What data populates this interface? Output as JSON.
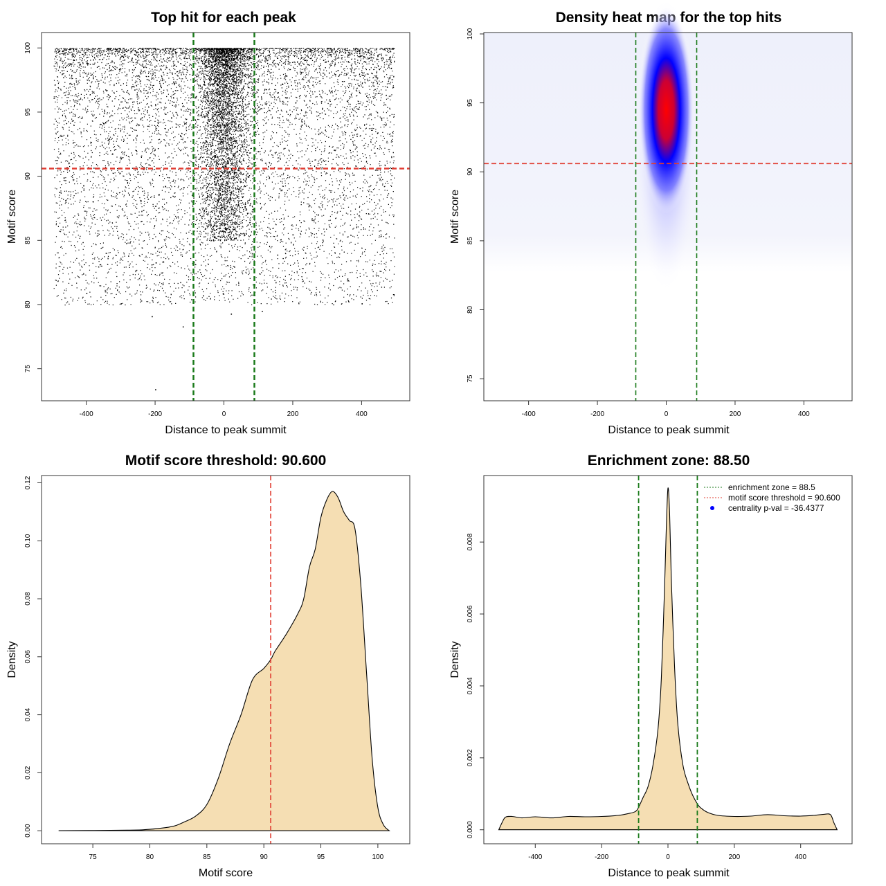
{
  "colors": {
    "threshold_line": "#e03c31",
    "zone_line": "#1a7a1a",
    "density_fill": "#f5deb3",
    "heat_low": "#ffffff",
    "heat_mid": "#0000ff",
    "heat_high": "#ff0000",
    "legend_point": "#0000ff"
  },
  "chart_data": [
    {
      "type": "scatter",
      "title": "Top hit for each peak",
      "xlabel": "Distance to peak summit",
      "ylabel": "Motif score",
      "xlim": [
        -530,
        540
      ],
      "ylim": [
        72.5,
        101.2
      ],
      "xticks": [
        -400,
        -200,
        0,
        200,
        400
      ],
      "yticks": [
        75,
        80,
        85,
        90,
        95,
        100
      ],
      "xtick_labels": [
        "-400",
        "-200",
        "0",
        "200",
        "400"
      ],
      "ytick_labels": [
        "75",
        "80",
        "85",
        "90",
        "95",
        "100"
      ],
      "grid": false,
      "point_count_estimate": 12000,
      "point_distribution": {
        "background_x_range": [
          -495,
          495
        ],
        "background_y_range": [
          80,
          100
        ],
        "central_cluster_x_center": 0,
        "central_cluster_x_spread": 35,
        "central_cluster_y_range": [
          85,
          100
        ]
      },
      "reference_lines": {
        "horizontal": [
          {
            "y": 90.6,
            "style": "dashed",
            "color": "red"
          }
        ],
        "vertical": [
          {
            "x": -88.5,
            "style": "dashed",
            "color": "green"
          },
          {
            "x": 88.5,
            "style": "dashed",
            "color": "green"
          }
        ]
      },
      "sample_outliers": [
        {
          "x": -200,
          "y": 73.4
        },
        {
          "x": -120,
          "y": 78.3
        },
        {
          "x": -210,
          "y": 79.1
        },
        {
          "x": 400,
          "y": 80.1
        },
        {
          "x": -300,
          "y": 80.1
        },
        {
          "x": -400,
          "y": 80.9
        },
        {
          "x": 20,
          "y": 79.3
        },
        {
          "x": 110,
          "y": 79.5
        }
      ]
    },
    {
      "type": "heatmap",
      "title": "Density heat map for the top hits",
      "xlabel": "Distance to peak summit",
      "ylabel": "Motif score",
      "xlim": [
        -530,
        540
      ],
      "ylim": [
        73.4,
        100.1
      ],
      "xticks": [
        -400,
        -200,
        0,
        200,
        400
      ],
      "yticks": [
        75,
        80,
        85,
        90,
        95,
        100
      ],
      "xtick_labels": [
        "-400",
        "-200",
        "0",
        "200",
        "400"
      ],
      "ytick_labels": [
        "75",
        "80",
        "85",
        "90",
        "95",
        "100"
      ],
      "color_scale": [
        "white",
        "blue",
        "red"
      ],
      "hotspot": {
        "x": 0,
        "y": 96.5
      },
      "reference_lines": {
        "horizontal": [
          {
            "y": 90.6,
            "style": "dashed",
            "color": "red"
          }
        ],
        "vertical": [
          {
            "x": -88.5,
            "style": "dashed",
            "color": "green"
          },
          {
            "x": 88.5,
            "style": "dashed",
            "color": "green"
          }
        ]
      }
    },
    {
      "type": "area",
      "title": "Motif score threshold: 90.600",
      "xlabel": "Motif score",
      "ylabel": "Density",
      "xlim": [
        70.5,
        102.8
      ],
      "ylim": [
        -0.0045,
        0.1225
      ],
      "xticks": [
        75,
        80,
        85,
        90,
        95,
        100
      ],
      "yticks": [
        0.0,
        0.02,
        0.04,
        0.06,
        0.08,
        0.1,
        0.12
      ],
      "xtick_labels": [
        "75",
        "80",
        "85",
        "90",
        "95",
        "100"
      ],
      "ytick_labels": [
        "0.00",
        "0.02",
        "0.04",
        "0.06",
        "0.08",
        "0.10",
        "0.12"
      ],
      "x": [
        72,
        78,
        80,
        82,
        83,
        84,
        85,
        86,
        87,
        88,
        89,
        90,
        90.6,
        91,
        92,
        93,
        93.5,
        94,
        94.5,
        95,
        95.5,
        96,
        96.5,
        97,
        97.5,
        98,
        98.5,
        99,
        99.5,
        100,
        100.5,
        101
      ],
      "y": [
        0.0,
        0.0002,
        0.0005,
        0.0015,
        0.003,
        0.005,
        0.009,
        0.018,
        0.03,
        0.04,
        0.052,
        0.056,
        0.059,
        0.062,
        0.068,
        0.075,
        0.08,
        0.091,
        0.097,
        0.108,
        0.114,
        0.117,
        0.115,
        0.11,
        0.107,
        0.104,
        0.085,
        0.055,
        0.025,
        0.008,
        0.002,
        0.0
      ],
      "reference_lines": {
        "vertical": [
          {
            "x": 90.6,
            "style": "dashed",
            "color": "red"
          }
        ]
      }
    },
    {
      "type": "area",
      "title": "Enrichment zone: 88.50",
      "xlabel": "Distance to peak summit",
      "ylabel": "Density",
      "xlim": [
        -555,
        555
      ],
      "ylim": [
        -0.00039,
        0.00985
      ],
      "xticks": [
        -400,
        -200,
        0,
        200,
        400
      ],
      "yticks": [
        0.0,
        0.002,
        0.004,
        0.006,
        0.008
      ],
      "xtick_labels": [
        "-400",
        "-200",
        "0",
        "200",
        "400"
      ],
      "ytick_labels": [
        "0.000",
        "0.002",
        "0.004",
        "0.006",
        "0.008"
      ],
      "x": [
        -510,
        -500,
        -490,
        -470,
        -440,
        -400,
        -350,
        -300,
        -250,
        -200,
        -150,
        -120,
        -100,
        -90,
        -75,
        -60,
        -45,
        -30,
        -20,
        -10,
        -5,
        0,
        5,
        10,
        20,
        30,
        45,
        60,
        75,
        90,
        100,
        120,
        150,
        200,
        250,
        300,
        350,
        400,
        440,
        470,
        490,
        500,
        510
      ],
      "y": [
        0.0,
        0.0002,
        0.00035,
        0.00037,
        0.00033,
        0.00036,
        0.00033,
        0.00037,
        0.00036,
        0.00037,
        0.0004,
        0.00045,
        0.0005,
        0.0006,
        0.0009,
        0.0012,
        0.0018,
        0.0028,
        0.0042,
        0.0068,
        0.0084,
        0.0095,
        0.0088,
        0.007,
        0.0045,
        0.0029,
        0.0018,
        0.0013,
        0.00095,
        0.0007,
        0.0006,
        0.00048,
        0.0004,
        0.00037,
        0.00038,
        0.00042,
        0.00039,
        0.00038,
        0.0004,
        0.00043,
        0.00042,
        0.0002,
        0.0
      ],
      "reference_lines": {
        "vertical": [
          {
            "x": -88.5,
            "style": "dashed",
            "color": "green"
          },
          {
            "x": 88.5,
            "style": "dashed",
            "color": "green"
          }
        ]
      },
      "legend": {
        "position": "top-right",
        "entries": [
          {
            "label": "enrichment zone = 88.5",
            "symbol": "dotted-line",
            "color": "green"
          },
          {
            "label": "motif score threshold = 90.600",
            "symbol": "dotted-line",
            "color": "red"
          },
          {
            "label": "centrality p-val = -36.4377",
            "symbol": "point",
            "color": "blue"
          }
        ]
      }
    }
  ]
}
